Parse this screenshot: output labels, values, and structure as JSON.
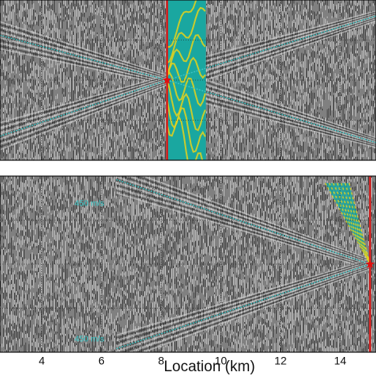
{
  "chart_data": {
    "type": "seismic-section",
    "xlabel": "Location (km)",
    "xlim": [
      2.6,
      15.2
    ],
    "xticks": [
      4,
      6,
      8,
      10,
      12,
      14
    ],
    "grid": true,
    "colors": {
      "background": "#808080",
      "trace_dark": "#2a2a2a",
      "trace_light": "#d8d8d8",
      "moveout_line": "#3fc4c4",
      "source_line": "#e01010",
      "source_marker": "#e01010",
      "window_fill": "#1aa7a0",
      "window_wave": "#e8d21a",
      "annotation": "#36c7c7"
    },
    "panels": [
      {
        "name": "upper",
        "source_x": 8.2,
        "window": {
          "x": [
            8.2,
            9.5
          ]
        },
        "moveout_lines": [
          {
            "from": [
              2.6,
              0.78
            ],
            "to": [
              8.2,
              0.5
            ]
          },
          {
            "from": [
              2.6,
              0.15
            ],
            "to": [
              8.2,
              0.5
            ]
          },
          {
            "from": [
              8.2,
              0.5
            ],
            "to": [
              15.2,
              0.9
            ]
          },
          {
            "from": [
              8.2,
              0.5
            ],
            "to": [
              15.2,
              0.11
            ]
          }
        ]
      },
      {
        "name": "lower",
        "source_x": 15.0,
        "window": {
          "apex": [
            15.0,
            0.5
          ],
          "top_x": [
            13.5,
            14.3
          ],
          "top_y": 0.96
        },
        "moveout_lines": [
          {
            "from": [
              6.5,
              0.98
            ],
            "to": [
              15.0,
              0.5
            ]
          },
          {
            "from": [
              6.5,
              0.02
            ],
            "to": [
              15.0,
              0.5
            ]
          }
        ],
        "annotations": [
          {
            "text": "450 m/s",
            "x": 5.1,
            "y": 0.83
          },
          {
            "text": "450 m/s",
            "x": 5.1,
            "y": 0.06
          }
        ]
      }
    ]
  }
}
